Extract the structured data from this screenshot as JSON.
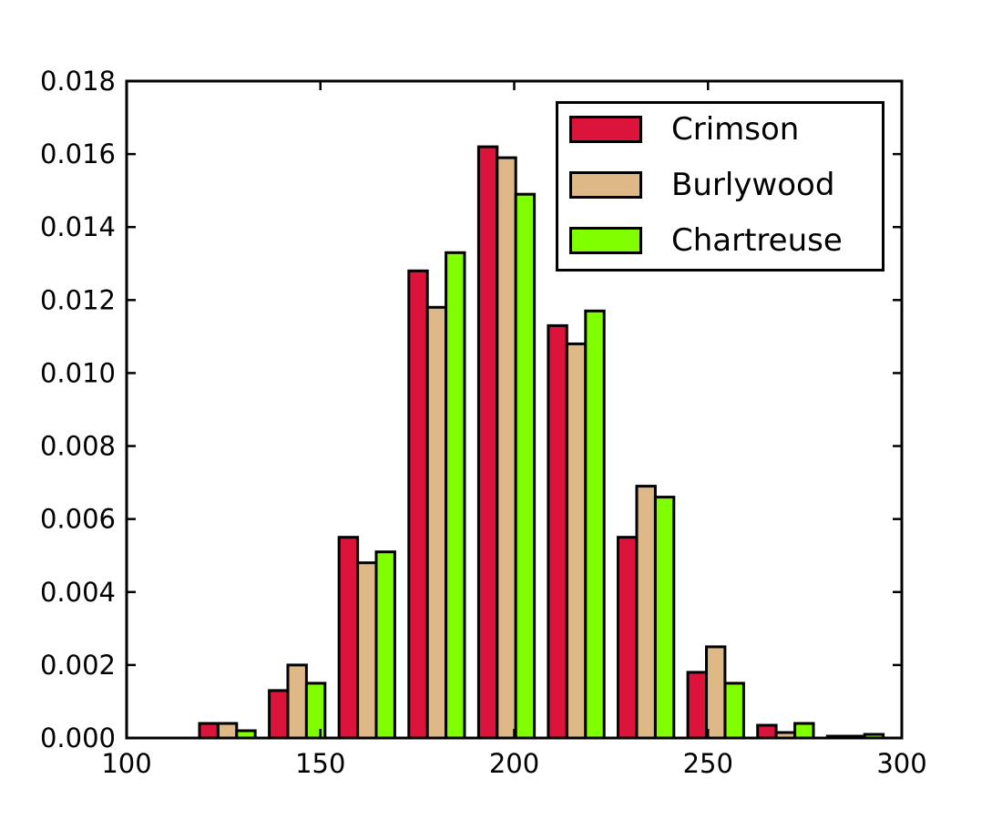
{
  "figure": {
    "background": "#ffffff"
  },
  "chart_data": {
    "type": "bar",
    "subtype": "grouped-histogram",
    "title": "",
    "xlabel": "",
    "ylabel": "",
    "grid": false,
    "xlim": [
      100,
      300
    ],
    "ylim": [
      0,
      0.018
    ],
    "xticks": [
      100,
      150,
      200,
      250,
      300
    ],
    "xtick_labels": [
      "100",
      "150",
      "200",
      "250",
      "300"
    ],
    "yticks": [
      0.0,
      0.002,
      0.004,
      0.006,
      0.008,
      0.01,
      0.012,
      0.014,
      0.016,
      0.018
    ],
    "ytick_labels": [
      "0.000",
      "0.002",
      "0.004",
      "0.006",
      "0.008",
      "0.010",
      "0.012",
      "0.014",
      "0.016",
      "0.018"
    ],
    "bin_edges": [
      118.8,
      136.8,
      154.8,
      172.8,
      190.8,
      208.8,
      226.8,
      244.8,
      262.8,
      280.8,
      298.8
    ],
    "bar_width_fraction": 0.8,
    "bar_edge_color": "#000000",
    "series": [
      {
        "name": "Crimson",
        "color": "#DC143C",
        "values": [
          0.0004,
          0.0013,
          0.0055,
          0.0128,
          0.0162,
          0.0113,
          0.0055,
          0.0018,
          0.00035,
          5e-05
        ]
      },
      {
        "name": "Burlywood",
        "color": "#DEB887",
        "values": [
          0.0004,
          0.002,
          0.0048,
          0.0118,
          0.0159,
          0.0108,
          0.0069,
          0.0025,
          0.00015,
          5e-05
        ]
      },
      {
        "name": "Chartreuse",
        "color": "#7FFF00",
        "values": [
          0.0002,
          0.0015,
          0.0051,
          0.0133,
          0.0149,
          0.0117,
          0.0066,
          0.0015,
          0.0004,
          0.0001
        ]
      }
    ],
    "legend": {
      "position": "upper right",
      "labels": [
        "Crimson",
        "Burlywood",
        "Chartreuse"
      ]
    }
  }
}
